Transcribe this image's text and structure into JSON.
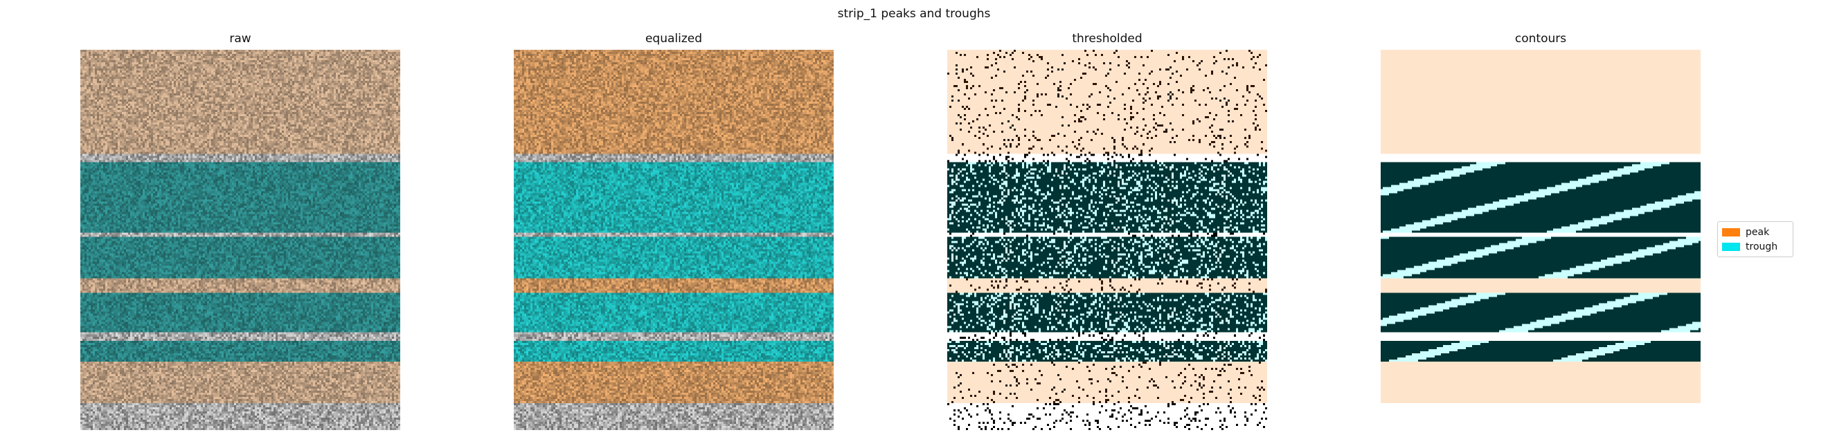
{
  "figure": {
    "title": "strip_1 peaks and troughs",
    "panels": [
      {
        "title": "raw",
        "type": "raw"
      },
      {
        "title": "equalized",
        "type": "equalized"
      },
      {
        "title": "thresholded",
        "type": "thresholded"
      },
      {
        "title": "contours",
        "type": "contours"
      }
    ],
    "legend": {
      "items": [
        {
          "label": "peak",
          "color": "#ff7f0e"
        },
        {
          "label": "trough",
          "color": "#00e5ee"
        }
      ]
    },
    "colors": {
      "peak_fill": "#ffe4cc",
      "trough_fill": "#003333",
      "trough_light": "#ccffff",
      "dark_blob": "#2b1400",
      "raw_peak_tint": "#c8a88a",
      "raw_trough_tint": "#2e8a8a",
      "eq_peak_tint": "#d49a62",
      "eq_trough_tint": "#20b8b8"
    },
    "bands": [
      {
        "label": "peak",
        "from": 0.0,
        "to": 0.27
      },
      {
        "label": "gray",
        "from": 0.27,
        "to": 0.295
      },
      {
        "label": "trough",
        "from": 0.295,
        "to": 0.48
      },
      {
        "label": "gray",
        "from": 0.48,
        "to": 0.49
      },
      {
        "label": "trough",
        "from": 0.49,
        "to": 0.6
      },
      {
        "label": "peak",
        "from": 0.6,
        "to": 0.635
      },
      {
        "label": "trough",
        "from": 0.635,
        "to": 0.74
      },
      {
        "label": "gray",
        "from": 0.74,
        "to": 0.765
      },
      {
        "label": "trough",
        "from": 0.765,
        "to": 0.815
      },
      {
        "label": "peak",
        "from": 0.815,
        "to": 0.925
      },
      {
        "label": "gray",
        "from": 0.925,
        "to": 1.0
      }
    ]
  }
}
